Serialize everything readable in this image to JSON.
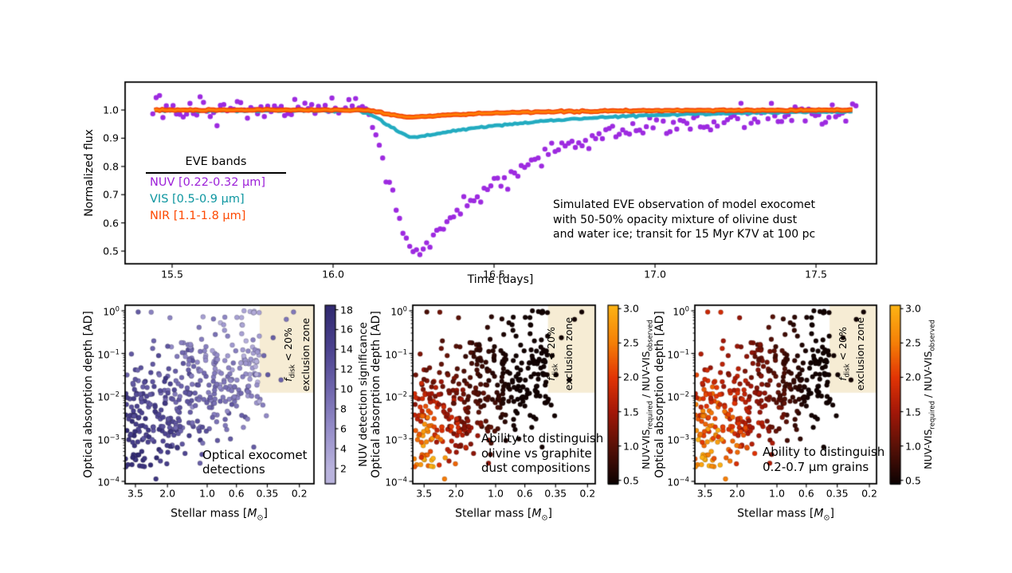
{
  "figure": {
    "background": "#ffffff"
  },
  "chart_data": [
    {
      "id": "exocomet-lightcurve",
      "type": "line+scatter",
      "xlabel": "Time [days]",
      "ylabel": "Normalized flux",
      "xlim": [
        15.354,
        17.688
      ],
      "ylim": [
        0.455,
        1.099
      ],
      "xtick_vals": [
        15.5,
        16.0,
        16.5,
        17.0,
        17.5
      ],
      "xtick_labels": [
        "15.5",
        "16.0",
        "16.5",
        "17.0",
        "17.5"
      ],
      "ytick_vals": [
        1.0,
        0.9,
        0.8,
        0.7,
        0.6,
        0.5
      ],
      "ytick_labels": [
        "1.0",
        "0.9",
        "0.8",
        "0.7",
        "0.6",
        "0.5"
      ],
      "legend": {
        "title": "EVE bands",
        "entries": [
          {
            "label": "NUV [0.22-0.32 μm]",
            "color": "#9c1fd8"
          },
          {
            "label": "VIS [0.5-0.9 μm]",
            "color": "#0d96a0"
          },
          {
            "label": "NIR [1.1-1.8 μm]",
            "color": "#fd4800"
          }
        ]
      },
      "annotation_lines": [
        "Simulated EVE observation of model exocomet",
        "with 50-50% opacity mixture of olivine dust",
        "and water ice; transit for 15 Myr K7V at 100 pc"
      ],
      "series": [
        {
          "name": "NUV [0.22-0.32 μm]",
          "style": "scatter",
          "color": "#9d2ae0",
          "marker_radius": 3.2,
          "t_range": [
            15.44,
            17.63
          ],
          "cadence": 0.0105,
          "noise_sigma": 0.02,
          "seed": 13,
          "transit": {
            "t_start": 16.08,
            "t_min": 16.27,
            "depth": 0.515,
            "recovery_tau": 0.34
          }
        },
        {
          "name": "VIS [0.5-0.9 μm]",
          "style": "line",
          "color": "#22abc0",
          "line_width": 4.6,
          "t_range": [
            15.445,
            17.62
          ],
          "noise_sigma": 0.0016,
          "seed": 3,
          "offset": -0.002,
          "transit": {
            "t_start": 16.07,
            "t_min": 16.26,
            "depth": 0.095,
            "recovery_tau": 0.42
          }
        },
        {
          "name": "NIR [1.1-1.8 μm]",
          "style": "line",
          "color": "#fe7d05",
          "edge_color": "#f23c00",
          "line_width": 3.2,
          "edge_width": 6,
          "t_range": [
            15.445,
            17.62
          ],
          "noise_sigma": 0.0012,
          "seed": 4,
          "offset": 0,
          "transit": {
            "t_start": 16.09,
            "t_min": 16.24,
            "depth": 0.026,
            "recovery_tau": 0.3
          }
        }
      ]
    },
    {
      "id": "optical-detections",
      "type": "scatter",
      "xscale": "log-reversed",
      "yscale": "log",
      "xlabel_parts": {
        "pre": "Stellar mass [",
        "m": "M",
        "sun": "⊙",
        "post": "]"
      },
      "ylabel": "Optical absorption depth [AD]",
      "xtick_vals": [
        3.5,
        2.0,
        1.0,
        0.6,
        0.35,
        0.2
      ],
      "xtick_labels": [
        "3.5",
        "2.0",
        "1.0",
        "0.6",
        "0.35",
        "0.2"
      ],
      "ytick_exps": [
        0,
        -1,
        -2,
        -3,
        -4
      ],
      "annotation_lines": [
        "Optical exocomet",
        "detections"
      ],
      "exclusion_zone": {
        "mass_max": 0.4,
        "ad_min": 0.012,
        "fill_color": "#f6ecd4",
        "label": {
          "f": "f",
          "sub": "disk",
          "rest": " < 20%",
          "line2": "exclusion zone"
        }
      },
      "colorbar": {
        "label": "NUV detection significance",
        "tick_vals": [
          2,
          4,
          6,
          8,
          10,
          12,
          14,
          16,
          18
        ],
        "tick_labels": [
          "2",
          "4",
          "6",
          "8",
          "10",
          "12",
          "14",
          "16",
          "18"
        ],
        "vmin": 0.45,
        "vmax": 18.45,
        "stops": [
          [
            2,
            "#b9b3dd"
          ],
          [
            6,
            "#958dc9"
          ],
          [
            10,
            "#6f66ad"
          ],
          [
            14,
            "#4c4390"
          ],
          [
            18,
            "#322b72"
          ]
        ]
      },
      "points_spec": {
        "n": 430,
        "seed": 42,
        "log_mass_range": [
          -0.45,
          0.62
        ],
        "log_ad_center_intercept": -1.85,
        "log_ad_center_slope": -1.35,
        "log_ad_sigma": 0.72,
        "extra_zone_points": [
          [
            -0.655,
            -0.03
          ],
          [
            -0.6,
            -0.2
          ],
          [
            -0.5,
            -0.63
          ],
          [
            -0.43,
            -1.05
          ],
          [
            -0.46,
            -1.5
          ],
          [
            -0.56,
            -1.62
          ]
        ],
        "color_model": {
          "mass_weight": 0.5,
          "depth_weight": 0.5,
          "noise": 1.8,
          "zone_base": 8,
          "zone_span": 5
        }
      }
    },
    {
      "id": "olivine-vs-graphite",
      "type": "scatter",
      "xscale": "log-reversed",
      "yscale": "log",
      "xlabel_parts": {
        "pre": "Stellar mass [",
        "m": "M",
        "sun": "⊙",
        "post": "]"
      },
      "ylabel": "Optical absorption depth [AD]",
      "xtick_vals": [
        3.5,
        2.0,
        1.0,
        0.6,
        0.35,
        0.2
      ],
      "xtick_labels": [
        "3.5",
        "2.0",
        "1.0",
        "0.6",
        "0.35",
        "0.2"
      ],
      "ytick_exps": [
        0,
        -1,
        -2,
        -3,
        -4
      ],
      "annotation_lines": [
        "Ability to distinguish",
        "olivine vs graphite",
        "dust compositions"
      ],
      "exclusion_zone": {
        "mass_max": 0.4,
        "ad_min": 0.012,
        "fill_color": "#f6ecd4",
        "label": {
          "f": "f",
          "sub": "disk",
          "rest": " < 20%",
          "line2": "exclusion zone"
        }
      },
      "colorbar": {
        "label_parts": {
          "a": "NUV-VIS",
          "sub_a": "required",
          "mid": " / NUV-VIS",
          "sub_b": "observed"
        },
        "tick_vals": [
          0.5,
          1.0,
          1.5,
          2.0,
          2.5,
          3.0
        ],
        "tick_labels": [
          "0.5",
          "1.0",
          "1.5",
          "2.0",
          "2.5",
          "3.0"
        ],
        "vmin": 0.45,
        "vmax": 3.05,
        "stops": [
          [
            0.45,
            "#0c0202"
          ],
          [
            1.0,
            "#591107"
          ],
          [
            1.5,
            "#a31708"
          ],
          [
            2.0,
            "#e23405"
          ],
          [
            2.5,
            "#f57f07"
          ],
          [
            3.05,
            "#fdb414"
          ]
        ]
      },
      "color_model": {
        "base_offset": 0.15,
        "base_span": 0.7,
        "depth_offset": 1.2,
        "depth_span": 2.8,
        "mix_base": 0.25,
        "mix_depth": 0.75,
        "rand_lo": 0.6,
        "rand_span": 0.8
      }
    },
    {
      "id": "grain-size",
      "type": "scatter",
      "xscale": "log-reversed",
      "yscale": "log",
      "xlabel_parts": {
        "pre": "Stellar mass [",
        "m": "M",
        "sun": "⊙",
        "post": "]"
      },
      "ylabel": "Optical absorption depth [AD]",
      "xtick_vals": [
        3.5,
        2.0,
        1.0,
        0.6,
        0.35,
        0.2
      ],
      "xtick_labels": [
        "3.5",
        "2.0",
        "1.0",
        "0.6",
        "0.35",
        "0.2"
      ],
      "ytick_exps": [
        0,
        -1,
        -2,
        -3,
        -4
      ],
      "annotation_lines": [
        "Ability to distinguish",
        "0.2-0.7 μm grains"
      ],
      "exclusion_zone": {
        "mass_max": 0.4,
        "ad_min": 0.012,
        "fill_color": "#f6ecd4",
        "label": {
          "f": "f",
          "sub": "disk",
          "rest": " < 20%",
          "line2": "exclusion zone"
        }
      },
      "colorbar": {
        "label_parts": {
          "a": "NUV-VIS",
          "sub_a": "required",
          "mid": " / NUV-VIS",
          "sub_b": "observed"
        },
        "tick_vals": [
          0.5,
          1.0,
          1.5,
          2.0,
          2.5,
          3.0
        ],
        "tick_labels": [
          "0.5",
          "1.0",
          "1.5",
          "2.0",
          "2.5",
          "3.0"
        ],
        "vmin": 0.45,
        "vmax": 3.05,
        "stops": [
          [
            0.45,
            "#0c0202"
          ],
          [
            1.0,
            "#591107"
          ],
          [
            1.5,
            "#a31708"
          ],
          [
            2.0,
            "#e23405"
          ],
          [
            2.5,
            "#f57f07"
          ],
          [
            3.05,
            "#fdb414"
          ]
        ]
      },
      "color_model": {
        "base_offset": 0.25,
        "base_span": 0.7,
        "depth_offset": 1.2,
        "depth_span": 2.8,
        "mix_base": 0.45,
        "mix_depth": 0.55,
        "rand_lo": 0.7,
        "rand_span": 0.6
      }
    }
  ]
}
